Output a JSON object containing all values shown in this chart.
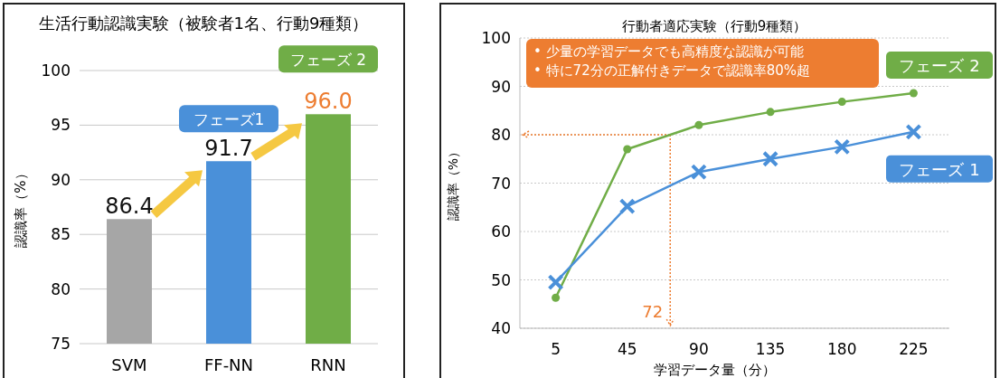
{
  "chart_data": [
    {
      "type": "bar",
      "title": "生活行動認識実験（被験者1名、行動9種類）",
      "ylabel": "認識率（%）",
      "categories": [
        "SVM",
        "FF-NN",
        "RNN"
      ],
      "values": [
        86.4,
        91.7,
        96.0
      ],
      "colors": [
        "#a6a6a6",
        "#4a90d9",
        "#70ad47"
      ],
      "value_labels": [
        "86.4",
        "91.7",
        "96.0"
      ],
      "ylim": [
        75,
        100
      ],
      "yticks": [
        75,
        80,
        85,
        90,
        95,
        100
      ],
      "grid": "y",
      "annotations": [
        "フェーズ1",
        "フェーズ 2"
      ]
    },
    {
      "type": "line",
      "title": "行動者適応実験（行動9種類）",
      "xlabel": "学習データ量（分）",
      "ylabel": "認識率（%）",
      "categories": [
        "5",
        "45",
        "90",
        "135",
        "180",
        "225"
      ],
      "ylim": [
        40,
        100
      ],
      "yticks": [
        40,
        50,
        60,
        70,
        80,
        90,
        100
      ],
      "grid": "y",
      "series": [
        {
          "name": "フェーズ 2",
          "color": "#70ad47",
          "marker": "circle",
          "values": [
            46.3,
            77.0,
            82.0,
            84.7,
            86.8,
            88.6
          ]
        },
        {
          "name": "フェーズ 1",
          "color": "#4a90d9",
          "marker": "cross",
          "values": [
            49.5,
            65.2,
            72.3,
            75.0,
            77.5,
            80.6
          ]
        }
      ],
      "ref_lines": [
        {
          "axis": "y",
          "value": 80,
          "color": "#ed7d31",
          "line_style": "dotted"
        }
      ],
      "annotations": [
        "• 少量の学習データでも高精度な認識が可能",
        "• 特に72分の正解付きデータで認識率80%超",
        "72"
      ]
    }
  ]
}
